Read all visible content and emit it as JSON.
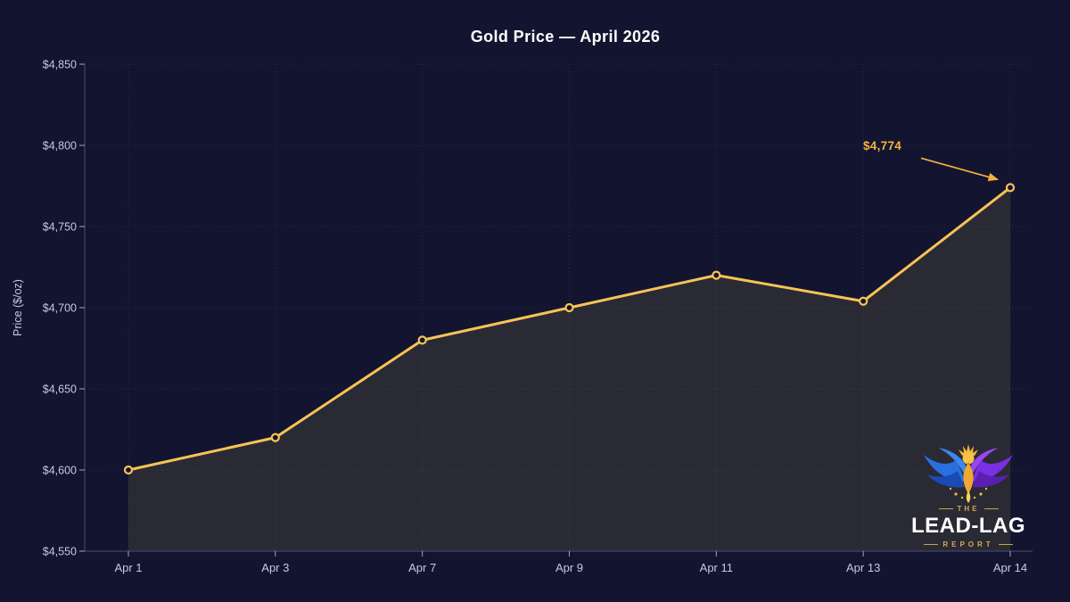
{
  "chart_data": {
    "type": "line",
    "title": "Gold Price — April 2026",
    "xlabel": "",
    "ylabel": "Price ($/oz)",
    "categories": [
      "Apr 1",
      "Apr 3",
      "Apr 7",
      "Apr 9",
      "Apr 11",
      "Apr 13",
      "Apr 14"
    ],
    "values": [
      4600,
      4620,
      4680,
      4700,
      4720,
      4704,
      4774
    ],
    "ylim": [
      4550,
      4850
    ],
    "y_ticks": [
      4550,
      4600,
      4650,
      4700,
      4750,
      4800,
      4850
    ],
    "y_tick_labels": [
      "$4,550",
      "$4,600",
      "$4,650",
      "$4,700",
      "$4,750",
      "$4,800",
      "$4,850"
    ],
    "grid": "dotted both axes",
    "legend_position": "none",
    "area_fill_under_line": true,
    "annotation": {
      "label": "$4,774",
      "target_category": "Apr 14",
      "target_value": 4774,
      "arrow": true
    },
    "colors": {
      "background": "#131530",
      "line": "#f7c355",
      "marker_fill": "#131530",
      "area_fill": "#2a2a34",
      "grid": "rgba(199,201,221,0.13)",
      "spine": "#41436a",
      "tick_text": "#c7c9dd",
      "title_text": "#ffffff",
      "annotation": "#f3b33f"
    }
  },
  "logo": {
    "the": "THE",
    "name": "LEAD-LAG",
    "report": "REPORT"
  }
}
